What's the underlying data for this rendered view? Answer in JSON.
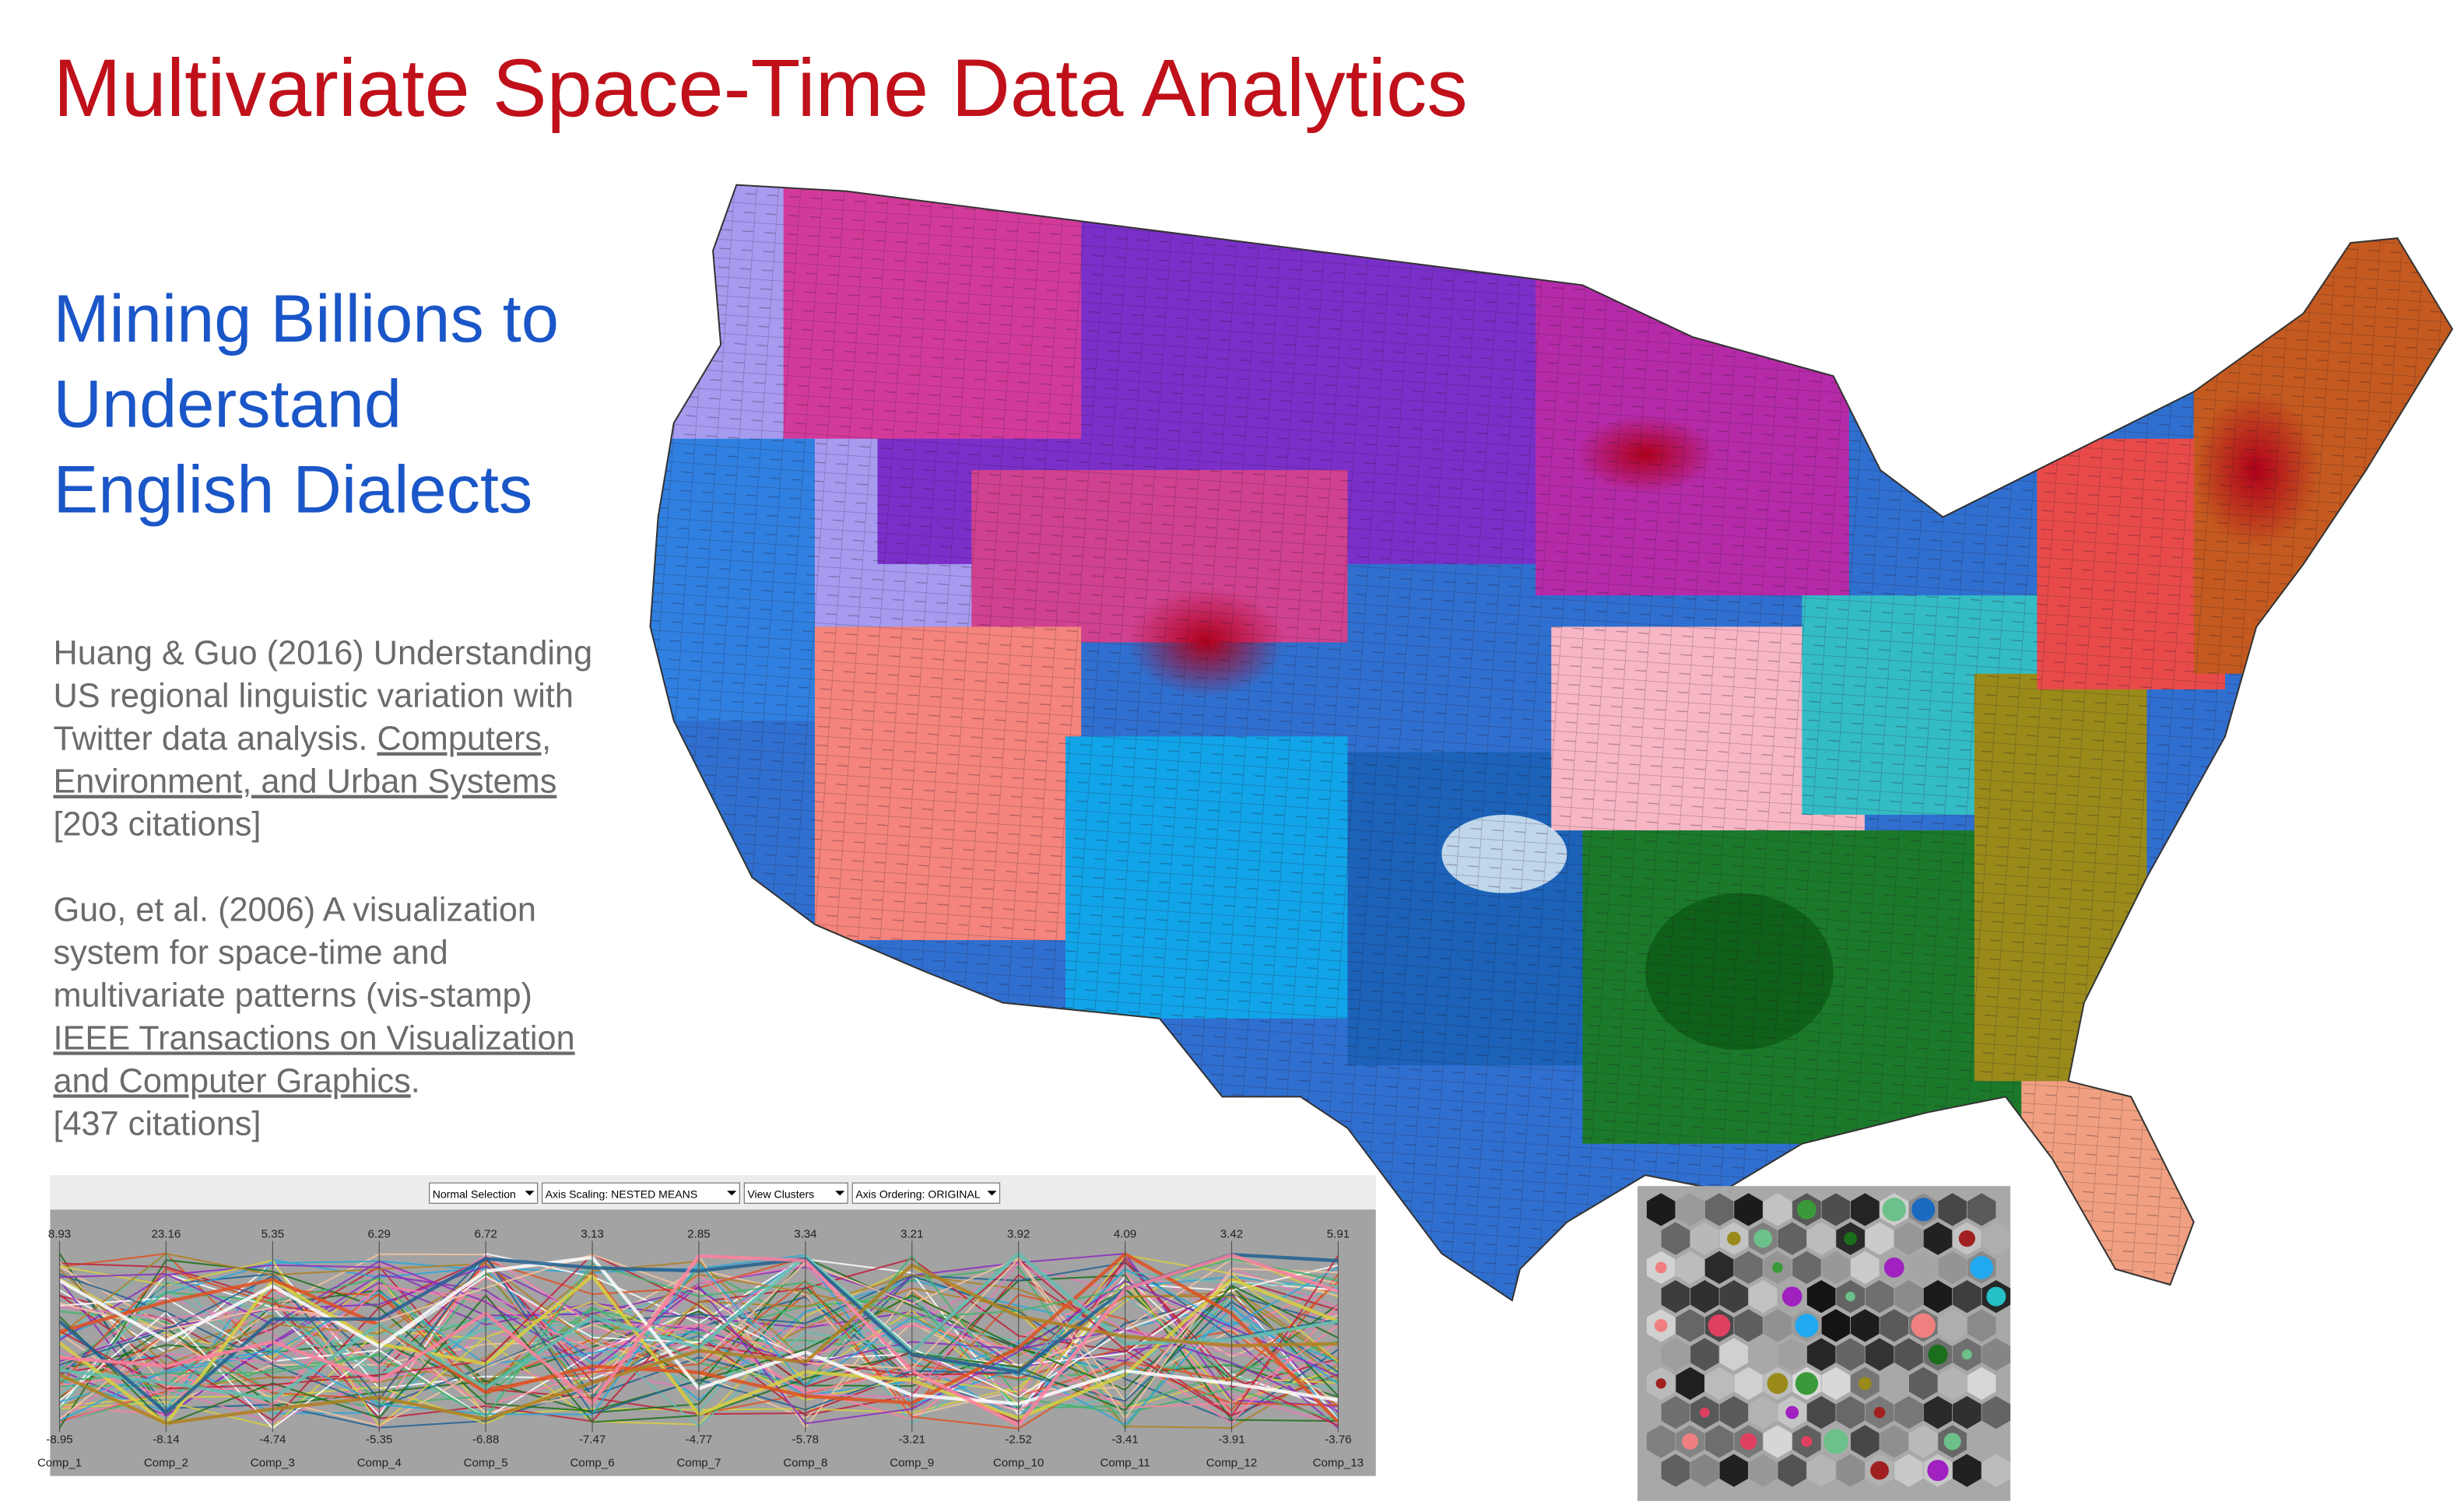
{
  "header": {
    "title": "Multivariate Space-Time Data Analytics"
  },
  "subtitle": {
    "lines": [
      "Mining Billions to",
      "Understand",
      "English Dialects"
    ]
  },
  "references": [
    {
      "lines": [
        [
          {
            "text": "Huang & Guo (2016) Understanding",
            "link": false
          }
        ],
        [
          {
            "text": "US regional linguistic variation with",
            "link": false
          }
        ],
        [
          {
            "text": "Twitter data analysis. ",
            "link": false
          },
          {
            "text": "Computers,",
            "link": true
          }
        ],
        [
          {
            "text": "Environment, and Urban Systems",
            "link": true
          }
        ],
        [
          {
            "text": "[203 citations]",
            "link": false
          }
        ]
      ]
    },
    {
      "lines": [
        [
          {
            "text": "Guo, et al. (2006) A visualization",
            "link": false
          }
        ],
        [
          {
            "text": "system for space-time and",
            "link": false
          }
        ],
        [
          {
            "text": "multivariate patterns (vis-stamp)",
            "link": false
          }
        ],
        [
          {
            "text": "IEEE Transactions on Visualization",
            "link": true
          }
        ],
        [
          {
            "text": "and Computer Graphics",
            "link": true
          },
          {
            "text": ".",
            "link": false
          }
        ],
        [
          {
            "text": "[437 citations]",
            "link": false
          }
        ]
      ]
    }
  ],
  "parallel_coordinates": {
    "controls": [
      "Normal Selection",
      "Axis Scaling: NESTED MEANS",
      "View Clusters",
      "Axis Ordering: ORIGINAL"
    ],
    "axes": [
      {
        "name": "Comp_1",
        "max": "8.93",
        "min": "-8.95"
      },
      {
        "name": "Comp_2",
        "max": "23.16",
        "min": "-8.14"
      },
      {
        "name": "Comp_3",
        "max": "5.35",
        "min": "-4.74"
      },
      {
        "name": "Comp_4",
        "max": "6.29",
        "min": "-5.35"
      },
      {
        "name": "Comp_5",
        "max": "6.72",
        "min": "-6.88"
      },
      {
        "name": "Comp_6",
        "max": "3.13",
        "min": "-7.47"
      },
      {
        "name": "Comp_7",
        "max": "2.85",
        "min": "-4.77"
      },
      {
        "name": "Comp_8",
        "max": "3.34",
        "min": "-5.78"
      },
      {
        "name": "Comp_9",
        "max": "3.21",
        "min": "-3.21"
      },
      {
        "name": "Comp_10",
        "max": "3.92",
        "min": "-2.52"
      },
      {
        "name": "Comp_11",
        "max": "4.09",
        "min": "-3.41"
      },
      {
        "name": "Comp_12",
        "max": "3.42",
        "min": "-3.91"
      },
      {
        "name": "Comp_13",
        "max": "5.91",
        "min": "-3.76"
      }
    ]
  }
}
